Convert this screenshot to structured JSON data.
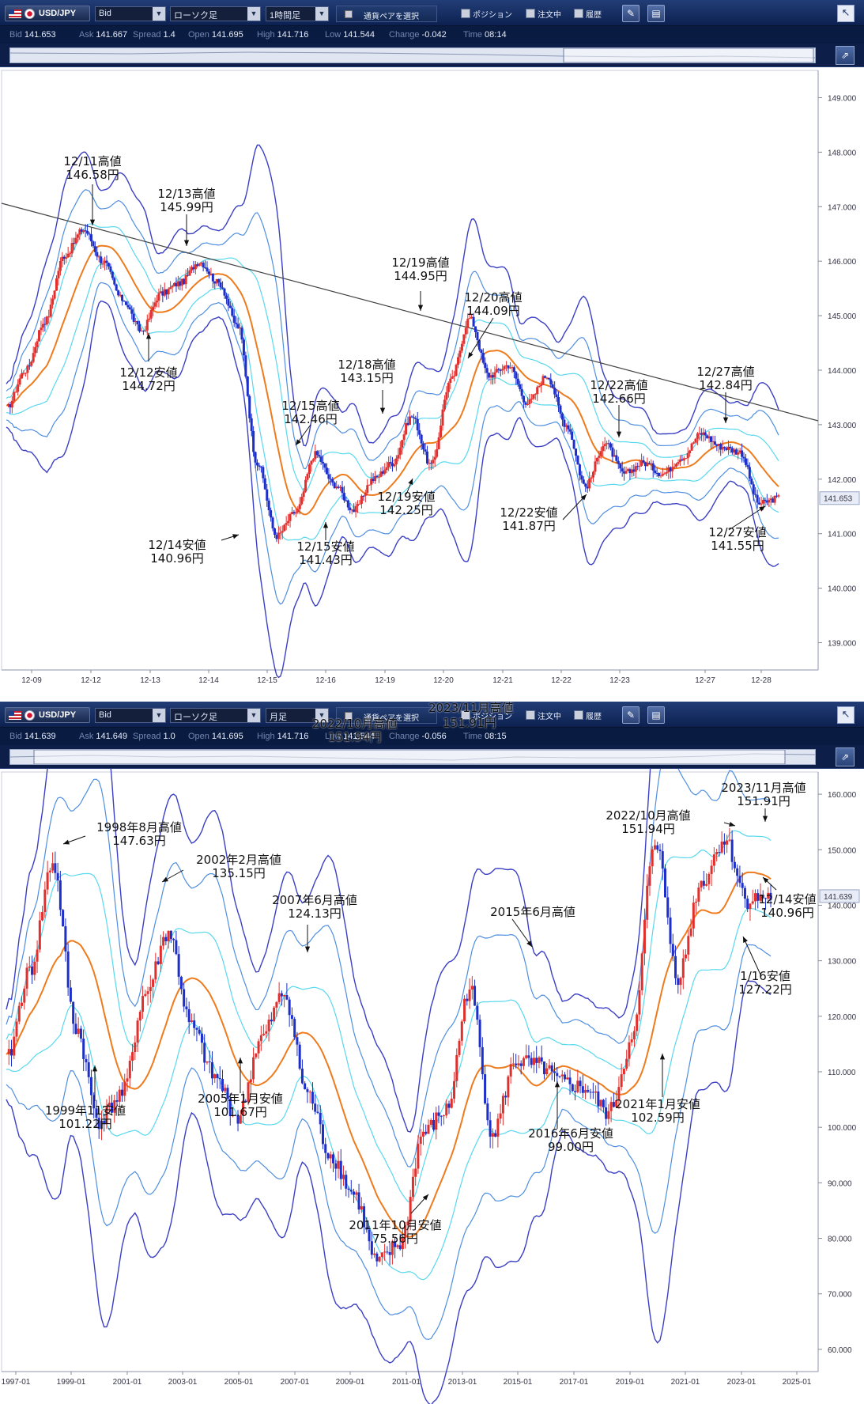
{
  "panels": [
    {
      "id": "top",
      "toolbar": {
        "pair": "USD/JPY",
        "price_type": "Bid",
        "chart_style": "ローソク足",
        "timeframe": "1時間足",
        "pair_select": "通貨ペアを選択",
        "position_label": "ポジション",
        "orders_label": "注文中",
        "history_label": "履歴"
      },
      "info": [
        {
          "k": "Bid",
          "v": "141.653"
        },
        {
          "k": "Ask",
          "v": "141.667"
        },
        {
          "k": "Spread",
          "v": "1.4"
        },
        {
          "k": "Open",
          "v": "141.695"
        },
        {
          "k": "High",
          "v": "141.716"
        },
        {
          "k": "Low",
          "v": "141.544"
        },
        {
          "k": "Change",
          "v": "-0.042"
        },
        {
          "k": "Time",
          "v": "08:14"
        }
      ],
      "current_price": "141.653"
    },
    {
      "id": "bottom",
      "toolbar": {
        "pair": "USD/JPY",
        "price_type": "Bid",
        "chart_style": "ローソク足",
        "timeframe": "月足",
        "pair_select": "通貨ペアを選択",
        "position_label": "ポジション",
        "orders_label": "注文中",
        "history_label": "履歴"
      },
      "info": [
        {
          "k": "Bid",
          "v": "141.639"
        },
        {
          "k": "Ask",
          "v": "141.649"
        },
        {
          "k": "Spread",
          "v": "1.0"
        },
        {
          "k": "Open",
          "v": "141.695"
        },
        {
          "k": "High",
          "v": "141.716"
        },
        {
          "k": "Low",
          "v": "141.544"
        },
        {
          "k": "Change",
          "v": "-0.056"
        },
        {
          "k": "Time",
          "v": "08:15"
        }
      ],
      "current_price": "141.639",
      "toolbar_overlay_text": [
        "2023/11月高値",
        "151.91円",
        "2022/10月高値",
        "151.94円"
      ]
    }
  ],
  "colors": {
    "candle_up": "#e0302e",
    "candle_down": "#1d2fc8",
    "band_outer": "#3b3fc4",
    "band_mid": "#4f8ee0",
    "band_inner": "#58d8ee",
    "moving_average": "#ee7b1e",
    "trendline": "#444444",
    "toolbar_bg": "#0c2150"
  },
  "chart_data": [
    {
      "type": "candlestick",
      "timeframe": "1時間足",
      "x_ticks": [
        "12-09",
        "12-12",
        "12-13",
        "12-14",
        "12-15",
        "12-16",
        "12-19",
        "12-20",
        "12-21",
        "12-22",
        "12-23",
        "12-27",
        "12-28"
      ],
      "y_ticks": [
        "149.000",
        "148.000",
        "147.000",
        "146.000",
        "145.000",
        "144.000",
        "143.000",
        "142.000",
        "141.000",
        "140.000",
        "139.000"
      ],
      "ylim": [
        138.5,
        149.5
      ],
      "indicators": [
        "ボリンジャーバンド",
        "移動平均線",
        "トレンドライン"
      ],
      "price_path": [
        [
          "12-09",
          143.3
        ],
        [
          "12-09",
          144.0
        ],
        [
          "12-09",
          144.9
        ],
        [
          "12-12",
          146.1
        ],
        [
          "12-12",
          146.58
        ],
        [
          "12-12",
          146.0
        ],
        [
          "12-12",
          145.3
        ],
        [
          "12-13",
          144.72
        ],
        [
          "12-13",
          145.4
        ],
        [
          "12-13",
          145.6
        ],
        [
          "12-13",
          145.99
        ],
        [
          "12-14",
          145.6
        ],
        [
          "12-14",
          144.8
        ],
        [
          "12-14",
          142.3
        ],
        [
          "12-14",
          140.96
        ],
        [
          "12-15",
          141.4
        ],
        [
          "12-15",
          142.46
        ],
        [
          "12-15",
          141.9
        ],
        [
          "12-16",
          141.43
        ],
        [
          "12-16",
          142.0
        ],
        [
          "12-16",
          142.3
        ],
        [
          "12-19",
          143.15
        ],
        [
          "12-19",
          142.25
        ],
        [
          "12-19",
          143.8
        ],
        [
          "12-19",
          144.95
        ],
        [
          "12-20",
          143.9
        ],
        [
          "12-20",
          144.09
        ],
        [
          "12-20",
          143.4
        ],
        [
          "12-21",
          143.9
        ],
        [
          "12-21",
          143.0
        ],
        [
          "12-22",
          141.87
        ],
        [
          "12-22",
          142.66
        ],
        [
          "12-22",
          142.1
        ],
        [
          "12-23",
          142.3
        ],
        [
          "12-23",
          142.1
        ],
        [
          "12-27",
          142.4
        ],
        [
          "12-27",
          142.84
        ],
        [
          "12-27",
          142.6
        ],
        [
          "12-28",
          142.5
        ],
        [
          "12-28",
          141.55
        ],
        [
          "12-28",
          141.653
        ]
      ],
      "annotations": [
        {
          "label": "12/11高値",
          "value": "146.58円"
        },
        {
          "label": "12/13高値",
          "value": "145.99円"
        },
        {
          "label": "12/12安値",
          "value": "144.72円"
        },
        {
          "label": "12/19高値",
          "value": "144.95円"
        },
        {
          "label": "12/20高値",
          "value": "144.09円"
        },
        {
          "label": "12/18高値",
          "value": "143.15円"
        },
        {
          "label": "12/15高値",
          "value": "142.46円"
        },
        {
          "label": "12/22高値",
          "value": "142.66円"
        },
        {
          "label": "12/27高値",
          "value": "142.84円"
        },
        {
          "label": "12/19安値",
          "value": "142.25円"
        },
        {
          "label": "12/22安値",
          "value": "141.87円"
        },
        {
          "label": "12/14安値",
          "value": "140.96円"
        },
        {
          "label": "12/15安値",
          "value": "141.43円"
        },
        {
          "label": "12/27安値",
          "value": "141.55円"
        }
      ]
    },
    {
      "type": "candlestick",
      "timeframe": "月足",
      "x_ticks": [
        "1997-01",
        "1999-01",
        "2001-01",
        "2003-01",
        "2005-01",
        "2007-01",
        "2009-01",
        "2011-01",
        "2013-01",
        "2015-01",
        "2017-01",
        "2019-01",
        "2021-01",
        "2023-01",
        "2025-01"
      ],
      "y_ticks": [
        "160.000",
        "150.000",
        "140.000",
        "130.000",
        "120.000",
        "110.000",
        "100.000",
        "90.000",
        "80.000",
        "70.000",
        "60.000"
      ],
      "ylim": [
        56,
        164
      ],
      "indicators": [
        "ボリンジャーバンド",
        "移動平均線"
      ],
      "price_path": [
        [
          "1997-01",
          112
        ],
        [
          "1998-01",
          128
        ],
        [
          "1998-08",
          147.63
        ],
        [
          "1999-01",
          118
        ],
        [
          "1999-11",
          101.22
        ],
        [
          "2000-06",
          106
        ],
        [
          "2001-06",
          124
        ],
        [
          "2002-02",
          135.15
        ],
        [
          "2003-06",
          118
        ],
        [
          "2004-06",
          109
        ],
        [
          "2005-01",
          101.67
        ],
        [
          "2006-01",
          116
        ],
        [
          "2007-06",
          124.13
        ],
        [
          "2008-06",
          106
        ],
        [
          "2009-06",
          95
        ],
        [
          "2010-06",
          88
        ],
        [
          "2011-10",
          75.56
        ],
        [
          "2012-06",
          79
        ],
        [
          "2013-06",
          99
        ],
        [
          "2014-06",
          103
        ],
        [
          "2015-06",
          125
        ],
        [
          "2016-06",
          99.0
        ],
        [
          "2017-06",
          112
        ],
        [
          "2018-06",
          111
        ],
        [
          "2019-06",
          108
        ],
        [
          "2020-06",
          107
        ],
        [
          "2021-01",
          102.59
        ],
        [
          "2022-01",
          115
        ],
        [
          "2022-10",
          151.94
        ],
        [
          "2023-01",
          127.22
        ],
        [
          "2023-06",
          144
        ],
        [
          "2023-11",
          151.91
        ],
        [
          "2023-12",
          140.96
        ],
        [
          "2023-12",
          141.639
        ]
      ],
      "annotations": [
        {
          "label": "1998年8月高値",
          "value": "147.63円"
        },
        {
          "label": "2002年2月高値",
          "value": "135.15円"
        },
        {
          "label": "2007年6月高値",
          "value": "124.13円"
        },
        {
          "label": "2015年6月高値",
          "value": ""
        },
        {
          "label": "2022/10月高値",
          "value": "151.94円"
        },
        {
          "label": "2023/11月高値",
          "value": "151.91円"
        },
        {
          "label": "12/14安値",
          "value": "140.96円"
        },
        {
          "label": "1/16安値",
          "value": "127.22円"
        },
        {
          "label": "1999年11安値",
          "value": "101.22円"
        },
        {
          "label": "2005年1月安値",
          "value": "101.67円"
        },
        {
          "label": "2011年10月安値",
          "value": "75.56円"
        },
        {
          "label": "2016年6月安値",
          "value": "99.00円"
        },
        {
          "label": "2021年1月安値",
          "value": "102.59円"
        }
      ]
    }
  ]
}
